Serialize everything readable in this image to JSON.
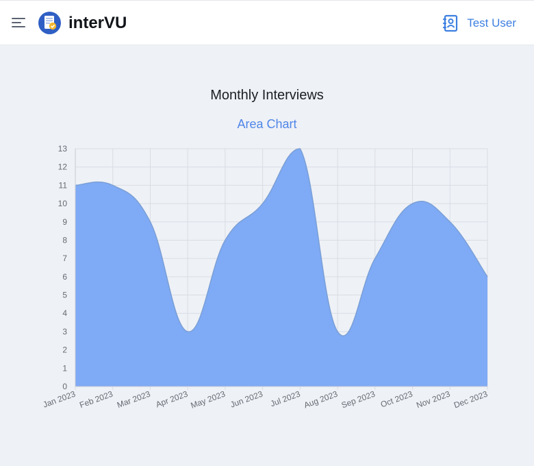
{
  "header": {
    "brand": "interVU",
    "user_name": "Test User",
    "menu_icon": "hamburger-menu-icon",
    "logo_icon": "intervu-logo-icon",
    "user_icon": "contact-book-icon"
  },
  "colors": {
    "accent": "#3d7fe0",
    "area_fill": "#7faaf5",
    "area_line": "#7a9fd6"
  },
  "chart_data": {
    "type": "area",
    "title": "Monthly Interviews",
    "subtitle": "Area Chart",
    "xlabel": "",
    "ylabel": "",
    "categories": [
      "Jan 2023",
      "Feb 2023",
      "Mar 2023",
      "Apr 2023",
      "May 2023",
      "Jun 2023",
      "Jul 2023",
      "Aug 2023",
      "Sep 2023",
      "Oct 2023",
      "Nov 2023",
      "Dec 2023"
    ],
    "series": [
      {
        "values": [
          11,
          11,
          9,
          3,
          8,
          10,
          13,
          3,
          7,
          10,
          9,
          6
        ]
      }
    ],
    "ylim": [
      0,
      13
    ],
    "yticks": [
      0,
      1,
      2,
      3,
      4,
      5,
      6,
      7,
      8,
      9,
      10,
      11,
      12,
      13
    ],
    "grid": true,
    "curve": "smooth"
  }
}
